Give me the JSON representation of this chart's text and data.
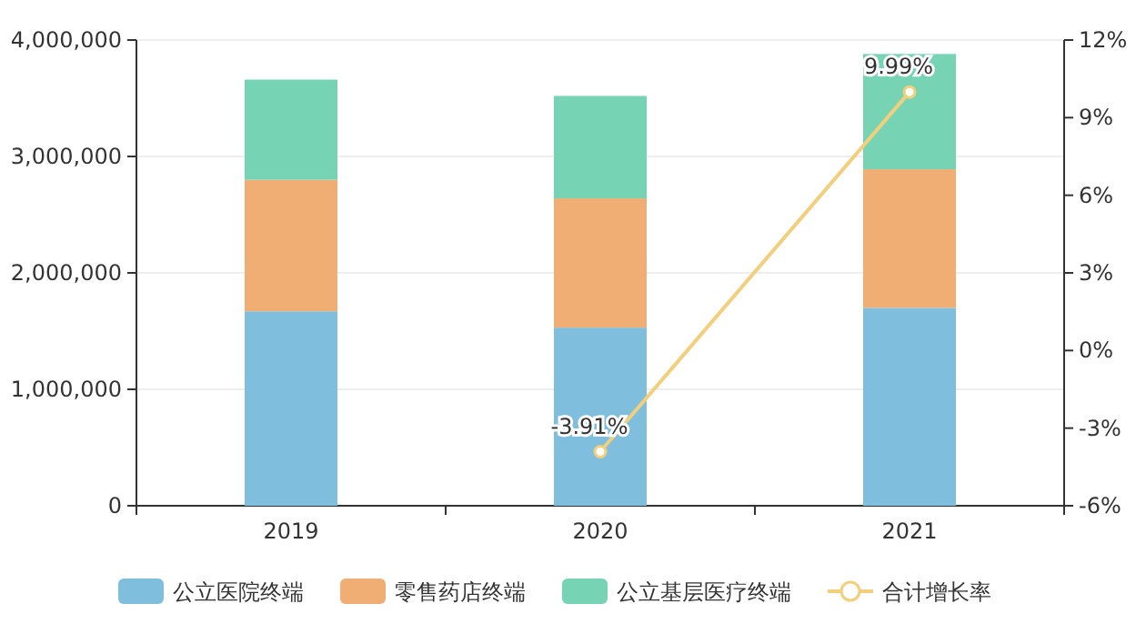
{
  "chart_data": {
    "type": "bar",
    "stacked": true,
    "categories": [
      "2019",
      "2020",
      "2021"
    ],
    "ylim": [
      0,
      4000000
    ],
    "yticks": [
      0,
      {
        "value": 1000000,
        "label": "1,000,000"
      },
      {
        "value": 2000000,
        "label": "2,000,000"
      },
      {
        "value": 3000000,
        "label": "3,000,000"
      },
      {
        "value": 4000000,
        "label": "4,000,000"
      }
    ],
    "y2lim": [
      -6,
      12
    ],
    "y2ticks": [
      {
        "value": -6,
        "label": "-6%"
      },
      {
        "value": -3,
        "label": "-3%"
      },
      {
        "value": 0,
        "label": "0%"
      },
      {
        "value": 3,
        "label": "3%"
      },
      {
        "value": 6,
        "label": "6%"
      },
      {
        "value": 9,
        "label": "9%"
      },
      {
        "value": 12,
        "label": "12%"
      }
    ],
    "grid": "y",
    "legend": "bottom",
    "marker": "circle",
    "series": [
      {
        "name": "公立医院终端",
        "color": "#7fbfdd",
        "values": [
          1670000,
          1530000,
          1700000
        ]
      },
      {
        "name": "零售药店终端",
        "color": "#f0ad74",
        "values": [
          1130000,
          1110000,
          1190000
        ]
      },
      {
        "name": "公立基层医疗终端",
        "color": "#76d4b4",
        "values": [
          860000,
          880000,
          990000
        ]
      },
      {
        "name": "合计增长率",
        "type": "line",
        "axis": "y2",
        "color": "#f2cf7c",
        "values": [
          null,
          -3.91,
          9.99
        ],
        "value_labels": [
          null,
          "-3.91%",
          "9.99%"
        ]
      }
    ]
  }
}
